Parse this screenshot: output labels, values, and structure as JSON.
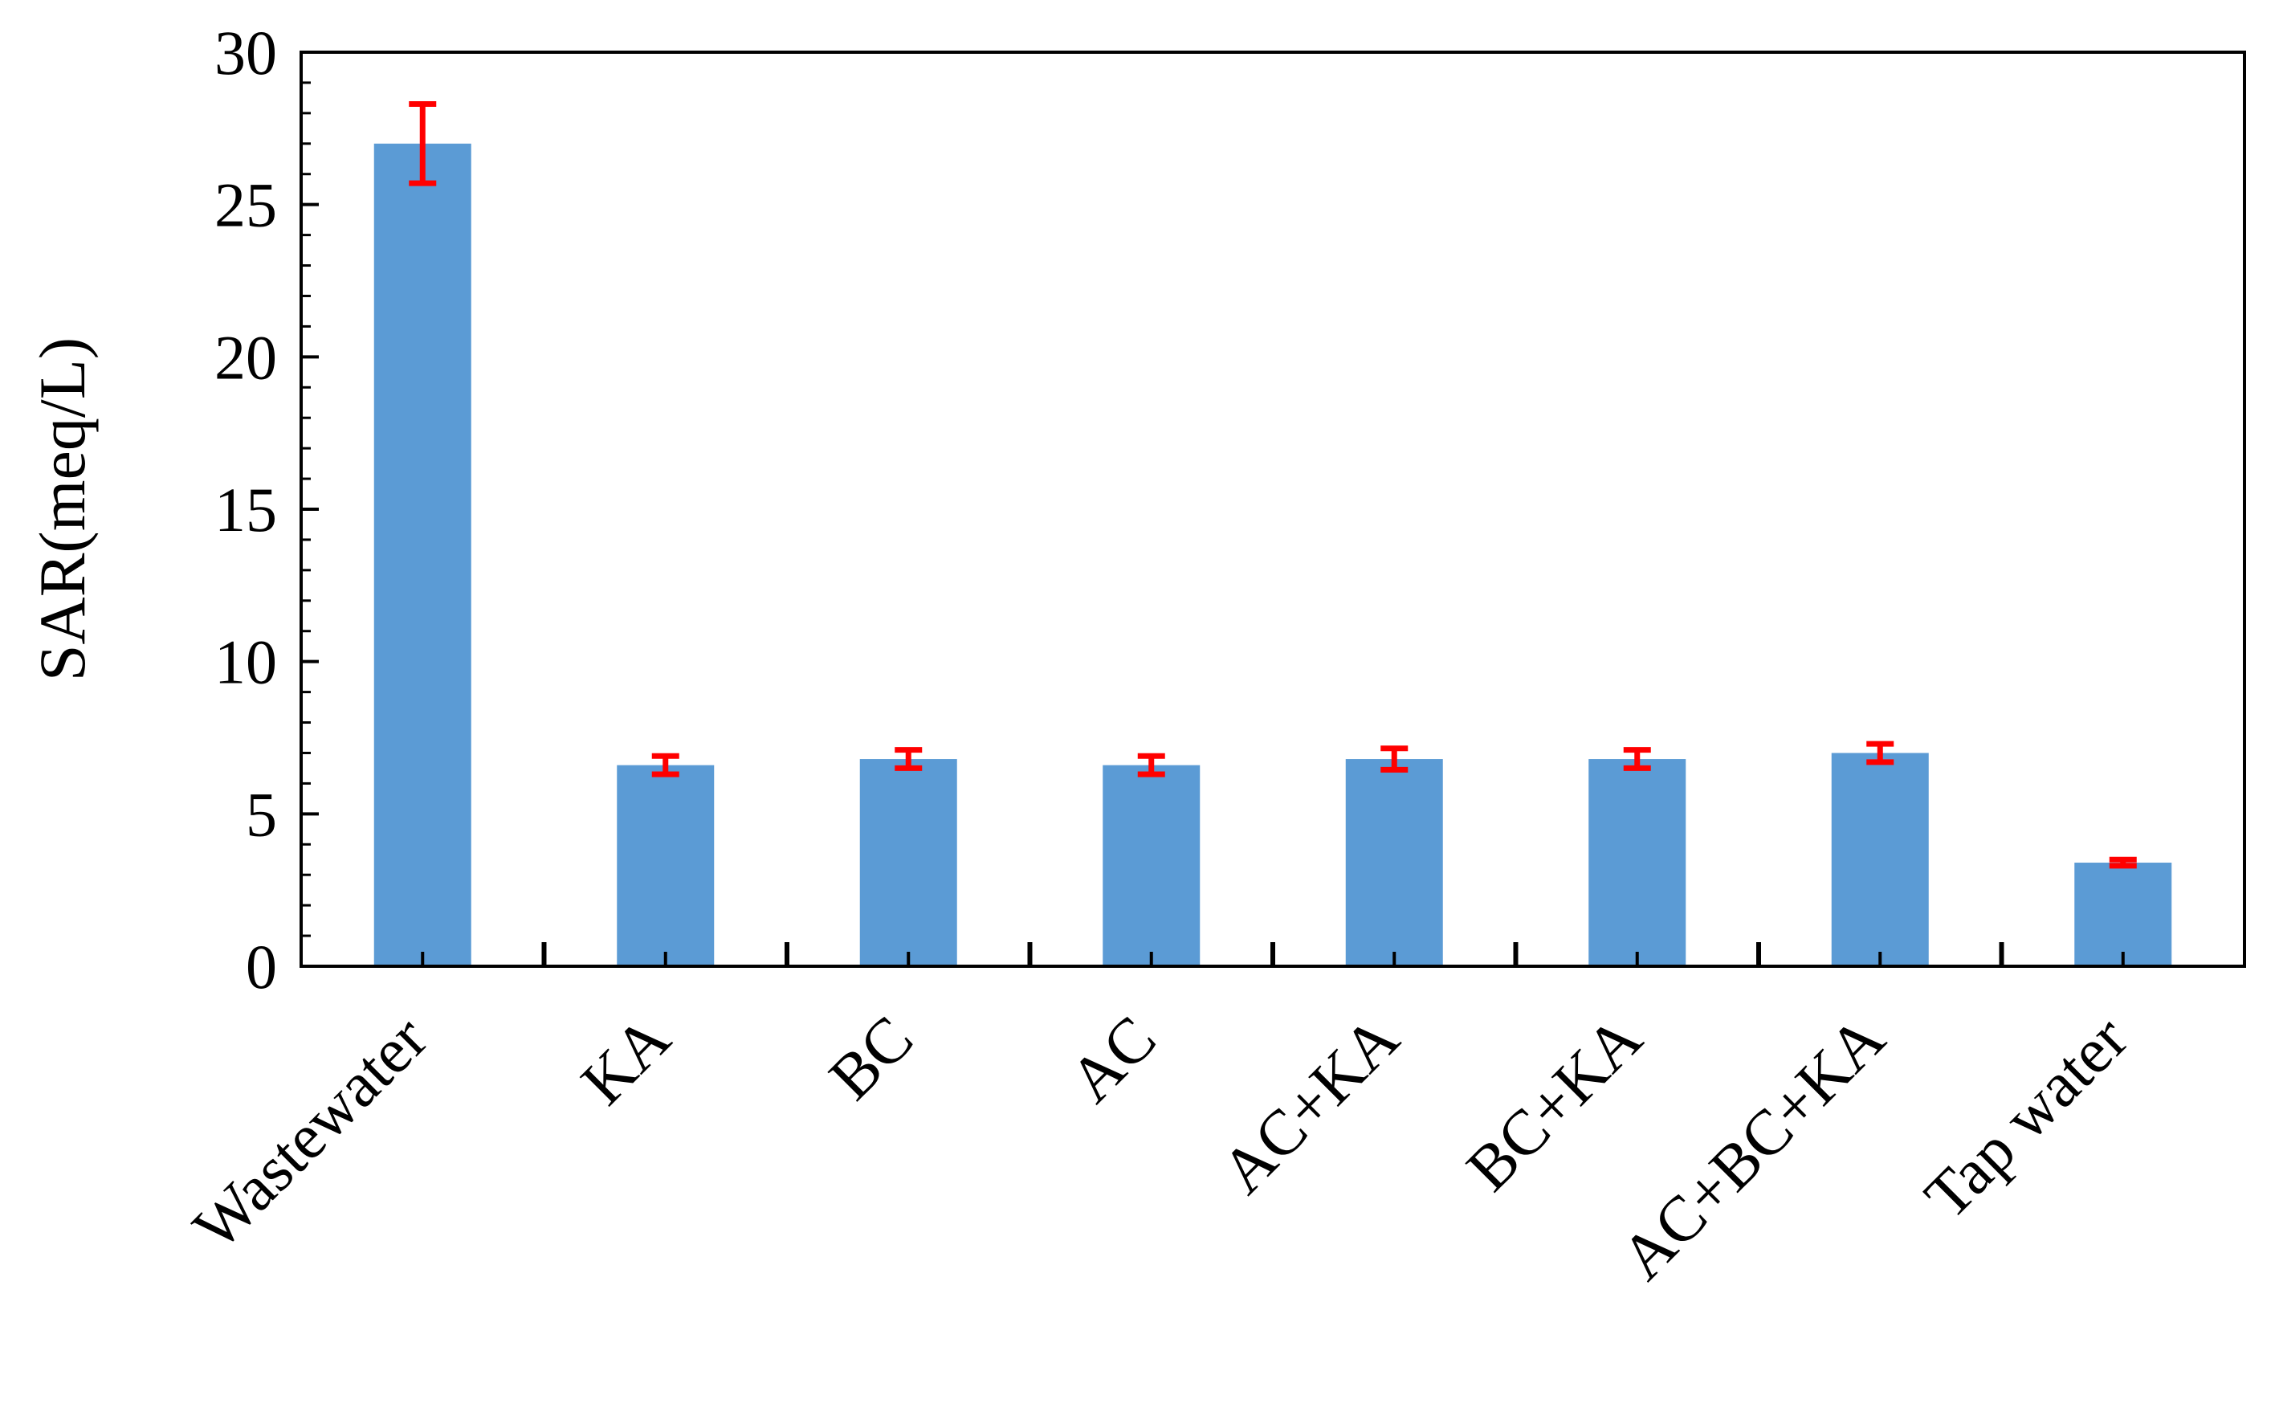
{
  "chart_data": {
    "type": "bar",
    "title": "",
    "xlabel": "",
    "ylabel": "SAR(meq/L)",
    "ylim": [
      0,
      30
    ],
    "yticks": [
      0,
      5,
      10,
      15,
      20,
      25,
      30
    ],
    "grid": false,
    "legend": "none",
    "categories": [
      "Wastewater",
      "KA",
      "BC",
      "AC",
      "AC+KA",
      "BC+KA",
      "AC+BC+KA",
      "Tap water"
    ],
    "series": [
      {
        "values": [
          27.0,
          6.6,
          6.8,
          6.6,
          6.8,
          6.8,
          7.0,
          3.4
        ],
        "errors": [
          1.3,
          0.3,
          0.3,
          0.3,
          0.35,
          0.3,
          0.3,
          0.1
        ],
        "color": "#5b9bd5"
      }
    ],
    "error_bar_color": "#ff0000"
  }
}
